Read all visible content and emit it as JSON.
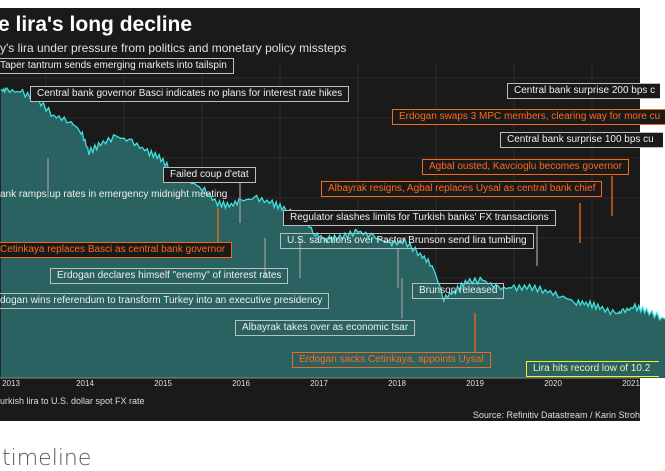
{
  "header": {
    "title": "e lira's long decline",
    "subtitle": "y's lira under pressure from politics and monetary policy missteps"
  },
  "footer": {
    "xlabel": "urkish lira to U.S. dollar spot FX rate",
    "source": "Source: Refinitiv Datastream / Karin Stroh"
  },
  "caption": "timeline",
  "colors": {
    "background": "#1a1a1a",
    "area": "#2a6262",
    "line": "#3fe0dc",
    "annotation_default": "#bdbdbd",
    "annotation_highlight": "#f26a1b",
    "annotation_record": "#f2ef2a"
  },
  "chart_data": {
    "type": "area",
    "title": "e lira's long decline",
    "xlabel": "urkish lira to U.S. dollar spot FX rate",
    "ylabel": "",
    "x_ticks": [
      "2013",
      "2014",
      "2015",
      "2016",
      "2017",
      "2018",
      "2019",
      "2020",
      "2021"
    ],
    "xlim": [
      2012.92,
      2021.75
    ],
    "ylim": [
      0,
      0.6
    ],
    "grid": true,
    "series": [
      {
        "x": [
          2012.92,
          2013.0,
          2013.2,
          2013.4,
          2013.6,
          2013.8,
          2013.95,
          2014.05,
          2014.2,
          2014.4,
          2014.6,
          2014.8,
          2014.95,
          2015.1,
          2015.3,
          2015.5,
          2015.7,
          2015.85,
          2016.0,
          2016.2,
          2016.4,
          2016.55,
          2016.8,
          2016.95,
          2017.1,
          2017.3,
          2017.5,
          2017.7,
          2017.9,
          2018.1,
          2018.3,
          2018.45,
          2018.6,
          2018.75,
          2018.9,
          2019.1,
          2019.3,
          2019.5,
          2019.7,
          2019.9,
          2020.1,
          2020.3,
          2020.45,
          2020.6,
          2020.8,
          2020.9,
          2021.05,
          2021.2,
          2021.4,
          2021.6,
          2021.75
        ],
        "values": [
          0.56,
          0.56,
          0.555,
          0.54,
          0.51,
          0.5,
          0.48,
          0.44,
          0.455,
          0.47,
          0.46,
          0.44,
          0.43,
          0.405,
          0.385,
          0.37,
          0.34,
          0.335,
          0.345,
          0.35,
          0.34,
          0.33,
          0.31,
          0.28,
          0.27,
          0.275,
          0.285,
          0.275,
          0.262,
          0.265,
          0.24,
          0.22,
          0.155,
          0.17,
          0.188,
          0.19,
          0.175,
          0.175,
          0.177,
          0.17,
          0.16,
          0.147,
          0.145,
          0.137,
          0.125,
          0.13,
          0.138,
          0.13,
          0.117,
          0.115,
          0.105
        ]
      }
    ],
    "annotations": [
      {
        "text": "Taper tantrum sends emerging markets into tailspin",
        "style": "default"
      },
      {
        "text": "Central bank governor Basci indicates no plans for interest rate hikes",
        "style": "default"
      },
      {
        "text": "Failed coup d'etat",
        "style": "default"
      },
      {
        "text": "ank ramps up rates in emergency midnight meeting",
        "style": "default"
      },
      {
        "text": "Regulator slashes limits for Turkish banks' FX transactions",
        "style": "default"
      },
      {
        "text": "U.S. sanctions over Pastor Brunson send lira tumbling",
        "style": "default"
      },
      {
        "text": "Cetinkaya replaces Basci as central bank governor",
        "style": "highlight"
      },
      {
        "text": "Erdogan declares himself \"enemy\" of interest rates",
        "style": "default"
      },
      {
        "text": "dogan wins referendum to transform Turkey into an executive presidency",
        "style": "default"
      },
      {
        "text": "Brunson released",
        "style": "default"
      },
      {
        "text": "Albayrak takes over as economic tsar",
        "style": "default"
      },
      {
        "text": "Erdogan sacks Cetinkaya, appoints Uysal",
        "style": "highlight"
      },
      {
        "text": "Lira hits record low of 10.2",
        "style": "record"
      },
      {
        "text": "Central bank surprise 200 bps c",
        "style": "default"
      },
      {
        "text": "Erdogan swaps 3 MPC members, clearing way for more cu",
        "style": "highlight"
      },
      {
        "text": "Central bank surprise 100 bps cu",
        "style": "default"
      },
      {
        "text": "Agbal ousted, Kavcioglu becomes governor",
        "style": "highlight"
      },
      {
        "text": "Albayrak resigns, Agbal replaces Uysal as central bank chief",
        "style": "highlight"
      }
    ]
  }
}
